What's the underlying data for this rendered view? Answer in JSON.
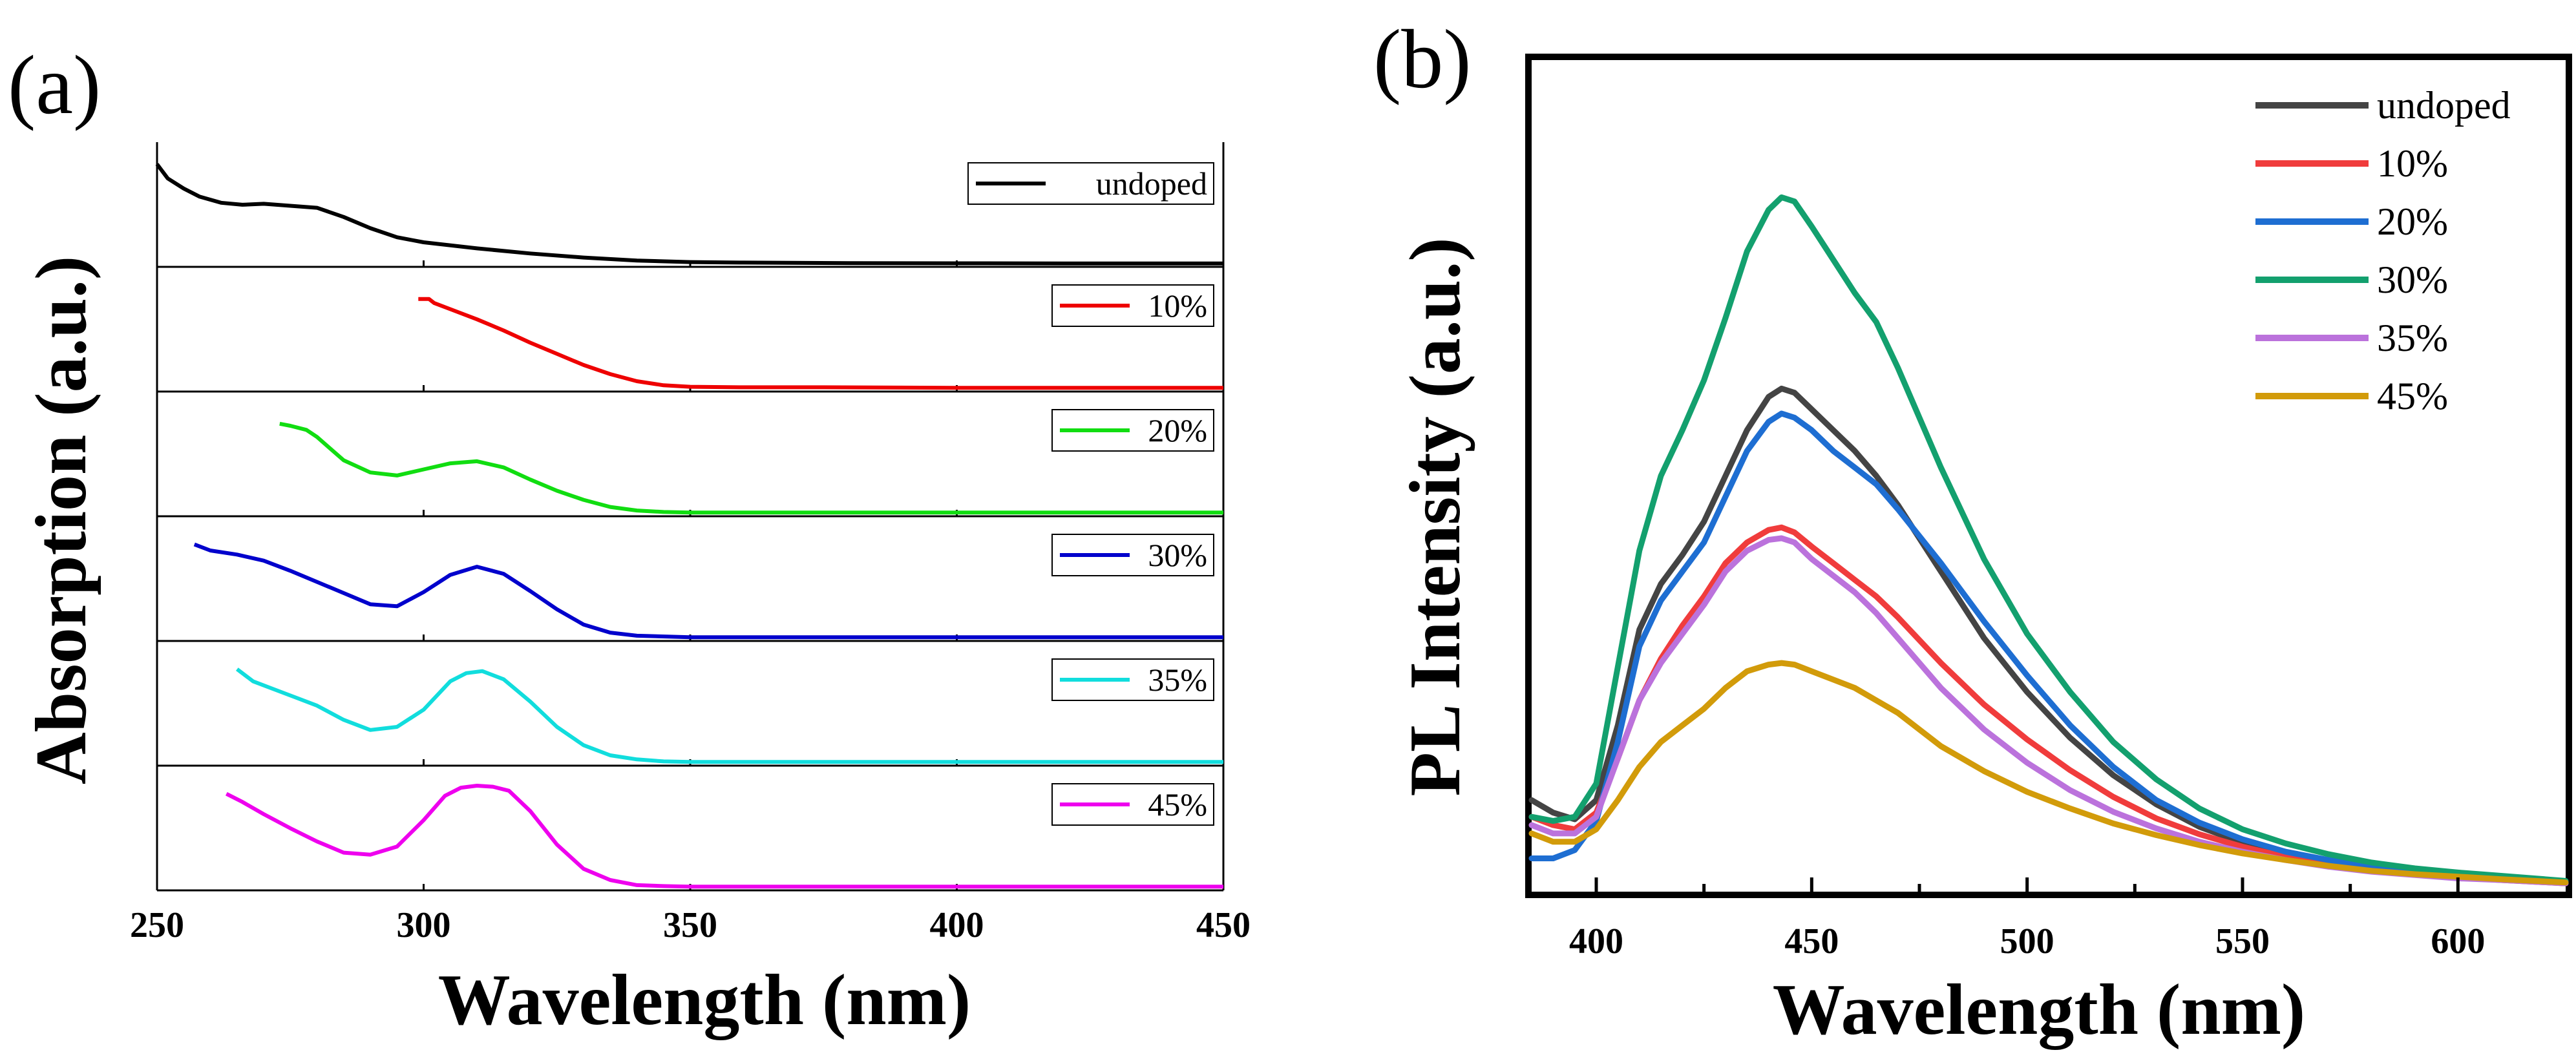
{
  "panel_a_label": "(a)",
  "panel_b_label": "(b)",
  "chart_data": [
    {
      "id": "a",
      "type": "line",
      "layout": "stacked",
      "title": "",
      "xlabel": "Wavelength (nm)",
      "ylabel": "Absorption (a.u.)",
      "xlim": [
        250,
        450
      ],
      "xticks": [
        250,
        300,
        350,
        400,
        450
      ],
      "ylim": [
        0,
        1
      ],
      "grid": false,
      "legend": "top-right of each sub-panel",
      "series": [
        {
          "name": "undoped",
          "color": "#000000",
          "x": [
            250,
            252,
            255,
            258,
            262,
            266,
            270,
            275,
            280,
            285,
            290,
            295,
            300,
            310,
            320,
            330,
            340,
            350,
            360,
            380,
            400,
            420,
            450
          ],
          "y": [
            0.98,
            0.84,
            0.74,
            0.66,
            0.6,
            0.58,
            0.59,
            0.57,
            0.55,
            0.46,
            0.35,
            0.26,
            0.21,
            0.15,
            0.1,
            0.06,
            0.03,
            0.015,
            0.01,
            0.005,
            0.003,
            0.002,
            0.002
          ]
        },
        {
          "name": "10%",
          "color": "#ee0000",
          "x": [
            299,
            301,
            302,
            305,
            310,
            315,
            320,
            325,
            330,
            335,
            340,
            345,
            350,
            360,
            375,
            400,
            450
          ],
          "y": [
            0.88,
            0.88,
            0.84,
            0.78,
            0.68,
            0.57,
            0.45,
            0.34,
            0.23,
            0.14,
            0.07,
            0.03,
            0.015,
            0.01,
            0.01,
            0.005,
            0.005
          ]
        },
        {
          "name": "20%",
          "color": "#11dd11",
          "x": [
            273,
            275,
            278,
            280,
            285,
            290,
            295,
            300,
            305,
            310,
            315,
            320,
            325,
            330,
            335,
            340,
            345,
            350,
            380,
            450
          ],
          "y": [
            0.88,
            0.86,
            0.82,
            0.75,
            0.52,
            0.4,
            0.37,
            0.43,
            0.49,
            0.51,
            0.45,
            0.33,
            0.22,
            0.13,
            0.06,
            0.025,
            0.01,
            0.005,
            0.005,
            0.005
          ]
        },
        {
          "name": "30%",
          "color": "#0000cc",
          "x": [
            257,
            260,
            265,
            270,
            275,
            280,
            285,
            290,
            295,
            300,
            305,
            310,
            315,
            320,
            325,
            330,
            335,
            340,
            350,
            450
          ],
          "y": [
            0.92,
            0.86,
            0.82,
            0.76,
            0.66,
            0.55,
            0.44,
            0.33,
            0.31,
            0.45,
            0.62,
            0.7,
            0.63,
            0.46,
            0.28,
            0.13,
            0.05,
            0.02,
            0.005,
            0.005
          ]
        },
        {
          "name": "35%",
          "color": "#11dddd",
          "x": [
            265,
            268,
            272,
            276,
            280,
            285,
            290,
            295,
            300,
            305,
            308,
            311,
            315,
            320,
            325,
            330,
            335,
            340,
            345,
            350,
            450
          ],
          "y": [
            0.92,
            0.8,
            0.72,
            0.64,
            0.56,
            0.42,
            0.32,
            0.35,
            0.52,
            0.8,
            0.88,
            0.9,
            0.82,
            0.6,
            0.35,
            0.17,
            0.07,
            0.03,
            0.01,
            0.005,
            0.005
          ]
        },
        {
          "name": "45%",
          "color": "#ee00ee",
          "x": [
            263,
            266,
            270,
            275,
            280,
            285,
            290,
            295,
            300,
            304,
            307,
            310,
            313,
            316,
            320,
            325,
            330,
            335,
            340,
            345,
            350,
            450
          ],
          "y": [
            0.92,
            0.84,
            0.72,
            0.58,
            0.45,
            0.34,
            0.32,
            0.4,
            0.66,
            0.9,
            0.98,
            1.0,
            0.99,
            0.95,
            0.75,
            0.42,
            0.18,
            0.07,
            0.02,
            0.01,
            0.005,
            0.005
          ]
        }
      ]
    },
    {
      "id": "b",
      "type": "line",
      "title": "",
      "xlabel": "Wavelength (nm)",
      "ylabel": "PL Intensity (a.u.)",
      "xlim": [
        385,
        625
      ],
      "xticks": [
        400,
        450,
        500,
        550,
        600
      ],
      "ylim": [
        0,
        100
      ],
      "grid": false,
      "legend": "top-right",
      "series": [
        {
          "name": "undoped",
          "color": "#444444",
          "x": [
            385,
            390,
            395,
            400,
            405,
            410,
            415,
            420,
            425,
            430,
            435,
            440,
            443,
            446,
            450,
            455,
            460,
            465,
            470,
            480,
            490,
            500,
            510,
            520,
            530,
            540,
            550,
            560,
            570,
            580,
            590,
            600,
            610,
            625
          ],
          "y": [
            11.0,
            9.5,
            8.7,
            11.0,
            20.0,
            31.5,
            37.0,
            40.5,
            44.5,
            50.0,
            55.5,
            59.5,
            60.5,
            60.0,
            58.0,
            55.5,
            53.0,
            50.0,
            46.5,
            38.5,
            30.5,
            24.0,
            18.5,
            14.0,
            10.5,
            7.8,
            5.9,
            4.5,
            3.6,
            2.9,
            2.4,
            2.0,
            1.6,
            1.2
          ]
        },
        {
          "name": "10%",
          "color": "#f03c3c",
          "x": [
            385,
            390,
            395,
            400,
            405,
            410,
            415,
            420,
            425,
            430,
            435,
            440,
            443,
            446,
            450,
            455,
            460,
            465,
            470,
            480,
            490,
            500,
            510,
            520,
            530,
            540,
            550,
            560,
            570,
            580,
            590,
            600,
            610,
            625
          ],
          "y": [
            9.0,
            8.0,
            7.5,
            9.5,
            16.0,
            23.0,
            28.0,
            32.0,
            35.5,
            39.5,
            42.0,
            43.5,
            43.8,
            43.2,
            41.5,
            39.5,
            37.5,
            35.5,
            33.0,
            27.5,
            22.5,
            18.3,
            14.6,
            11.4,
            8.8,
            6.9,
            5.4,
            4.2,
            3.3,
            2.6,
            2.1,
            1.7,
            1.4,
            1.0
          ]
        },
        {
          "name": "20%",
          "color": "#1e6ed2",
          "x": [
            385,
            390,
            395,
            400,
            405,
            410,
            415,
            420,
            425,
            430,
            435,
            440,
            443,
            446,
            450,
            455,
            460,
            465,
            470,
            480,
            490,
            500,
            510,
            520,
            530,
            540,
            550,
            560,
            570,
            580,
            590,
            600,
            610,
            625
          ],
          "y": [
            4.0,
            4.0,
            5.0,
            8.5,
            18.0,
            29.5,
            35.0,
            38.5,
            42.0,
            47.5,
            53.0,
            56.5,
            57.5,
            57.0,
            55.5,
            53.0,
            51.0,
            49.0,
            46.0,
            39.5,
            32.5,
            26.0,
            20.0,
            15.0,
            11.0,
            8.3,
            6.3,
            4.8,
            3.8,
            3.0,
            2.5,
            2.0,
            1.7,
            1.2
          ]
        },
        {
          "name": "30%",
          "color": "#13a06e",
          "x": [
            385,
            390,
            395,
            400,
            405,
            410,
            415,
            420,
            425,
            430,
            435,
            440,
            443,
            446,
            450,
            455,
            460,
            465,
            470,
            480,
            490,
            500,
            510,
            520,
            530,
            540,
            550,
            560,
            570,
            580,
            590,
            600,
            610,
            625
          ],
          "y": [
            9.0,
            8.5,
            9.0,
            13.0,
            27.0,
            41.0,
            50.0,
            55.5,
            61.5,
            69.0,
            77.0,
            82.0,
            83.5,
            83.0,
            80.0,
            76.0,
            72.0,
            68.5,
            63.0,
            51.0,
            40.0,
            31.0,
            24.0,
            18.0,
            13.5,
            10.0,
            7.5,
            5.8,
            4.5,
            3.5,
            2.8,
            2.3,
            1.9,
            1.3
          ]
        },
        {
          "name": "35%",
          "color": "#bb72dc",
          "x": [
            385,
            390,
            395,
            400,
            405,
            410,
            415,
            420,
            425,
            430,
            435,
            440,
            443,
            446,
            450,
            455,
            460,
            465,
            470,
            480,
            490,
            500,
            510,
            520,
            530,
            540,
            550,
            560,
            570,
            580,
            590,
            600,
            610,
            625
          ],
          "y": [
            8.0,
            7.0,
            7.0,
            9.0,
            16.0,
            23.0,
            27.5,
            31.0,
            34.5,
            38.5,
            41.0,
            42.3,
            42.5,
            42.0,
            40.0,
            38.0,
            36.0,
            33.5,
            30.5,
            24.5,
            19.5,
            15.5,
            12.2,
            9.6,
            7.6,
            6.0,
            4.8,
            3.8,
            3.0,
            2.4,
            2.0,
            1.6,
            1.4,
            1.0
          ]
        },
        {
          "name": "45%",
          "color": "#d29b0a",
          "x": [
            385,
            390,
            395,
            400,
            405,
            410,
            415,
            420,
            425,
            430,
            435,
            440,
            443,
            446,
            450,
            455,
            460,
            465,
            470,
            480,
            490,
            500,
            510,
            520,
            530,
            540,
            550,
            560,
            570,
            580,
            590,
            600,
            610,
            625
          ],
          "y": [
            7.0,
            6.0,
            6.0,
            7.5,
            11.0,
            15.0,
            18.0,
            20.0,
            22.0,
            24.5,
            26.5,
            27.3,
            27.5,
            27.3,
            26.5,
            25.5,
            24.5,
            23.0,
            21.5,
            17.5,
            14.5,
            12.0,
            10.0,
            8.2,
            6.8,
            5.6,
            4.6,
            3.8,
            3.1,
            2.5,
            2.1,
            1.8,
            1.5,
            1.1
          ]
        }
      ]
    }
  ]
}
